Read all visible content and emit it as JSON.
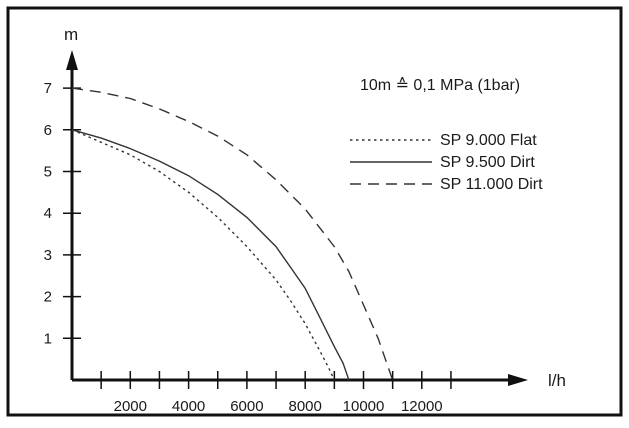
{
  "chart_data": {
    "type": "line",
    "xlabel": "l/h",
    "ylabel": "m",
    "xlim": [
      0,
      15000
    ],
    "ylim": [
      0,
      8
    ],
    "x_ticks": [
      2000,
      4000,
      6000,
      8000,
      10000,
      12000
    ],
    "x_tick_labels": [
      "2000",
      "4000",
      "6000",
      "8000",
      "10000",
      "12000"
    ],
    "x_minor_tick_step": 1000,
    "y_ticks": [
      1,
      2,
      3,
      4,
      5,
      6,
      7
    ],
    "y_tick_labels": [
      "1",
      "2",
      "3",
      "4",
      "5",
      "6",
      "7"
    ],
    "grid": false,
    "legend_position": "right",
    "annotation": "10m ≙ 0,1 MPa (1bar)",
    "series": [
      {
        "name": "SP 9.000 Flat",
        "style": "dotted",
        "color": "#333333",
        "x": [
          0,
          1000,
          2000,
          3000,
          4000,
          5000,
          6000,
          7000,
          7500,
          8000,
          8500,
          8800,
          9000
        ],
        "y": [
          6.0,
          5.7,
          5.4,
          5.0,
          4.5,
          3.9,
          3.2,
          2.4,
          1.9,
          1.35,
          0.7,
          0.3,
          0.0
        ]
      },
      {
        "name": "SP 9.500 Dirt",
        "style": "solid",
        "color": "#333333",
        "x": [
          0,
          1000,
          2000,
          3000,
          4000,
          5000,
          6000,
          7000,
          7500,
          8000,
          8500,
          9000,
          9300,
          9500
        ],
        "y": [
          6.0,
          5.8,
          5.55,
          5.25,
          4.9,
          4.45,
          3.9,
          3.2,
          2.7,
          2.2,
          1.5,
          0.8,
          0.4,
          0.0
        ]
      },
      {
        "name": "SP 11.000 Dirt",
        "style": "dashed",
        "color": "#333333",
        "x": [
          0,
          1000,
          2000,
          3000,
          4000,
          5000,
          6000,
          7000,
          8000,
          9000,
          9500,
          10000,
          10500,
          11000
        ],
        "y": [
          7.0,
          6.9,
          6.75,
          6.5,
          6.2,
          5.85,
          5.4,
          4.8,
          4.1,
          3.2,
          2.6,
          1.8,
          1.0,
          0.0
        ]
      }
    ]
  },
  "colors": {
    "axis": "#111111",
    "frame": "#111111",
    "series": "#333333",
    "background": "#ffffff"
  }
}
